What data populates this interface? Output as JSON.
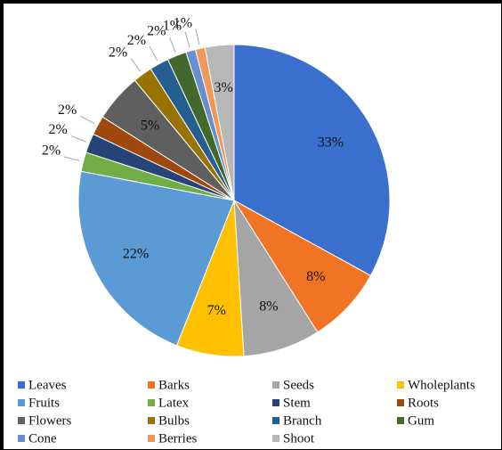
{
  "chart_data": {
    "type": "pie",
    "categories": [
      "Leaves",
      "Barks",
      "Seeds",
      "Wholeplants",
      "Fruits",
      "Latex",
      "Stem",
      "Roots",
      "Flowers",
      "Bulbs",
      "Branch",
      "Gum",
      "Cone",
      "Berries",
      "Shoot"
    ],
    "values": [
      33,
      8,
      8,
      7,
      22,
      2,
      2,
      2,
      5,
      2,
      2,
      2,
      1,
      1,
      3
    ],
    "value_labels": [
      "33%",
      "8%",
      "8%",
      "7%",
      "22%",
      "2%",
      "2%",
      "2%",
      "5%",
      "2%",
      "2%",
      "2%",
      "1%",
      "1%",
      "3%"
    ],
    "colors": [
      "#3b6fce",
      "#f07424",
      "#a5a5a5",
      "#ffc000",
      "#5b9bd5",
      "#70ad47",
      "#264478",
      "#9e480e",
      "#5f5f5f",
      "#997300",
      "#255e91",
      "#43682b",
      "#698ed0",
      "#f1975a",
      "#b7b7b7"
    ],
    "legend": "bottom"
  }
}
